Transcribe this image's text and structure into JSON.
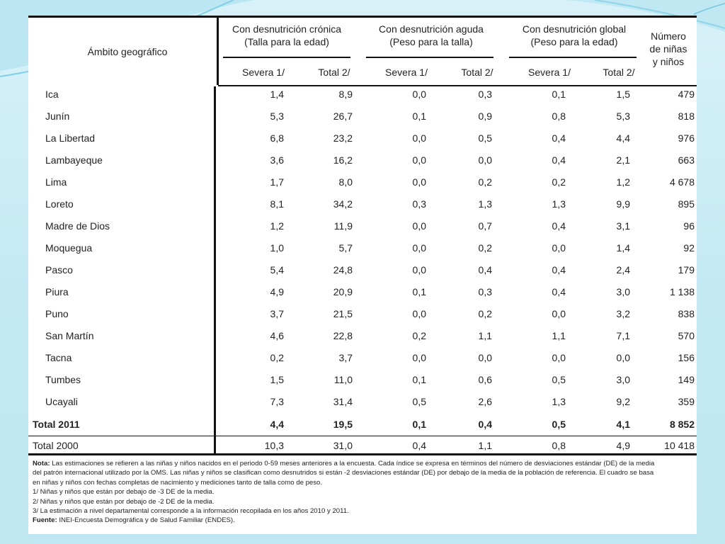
{
  "header": {
    "geo": "Ámbito geográfico",
    "chronic": [
      "Con desnutrición crónica",
      "(Talla para la edad)"
    ],
    "acute": [
      "Con desnutrición aguda",
      "(Peso para la talla)"
    ],
    "global": [
      "Con desnutrición global",
      "(Peso para la edad)"
    ],
    "count": [
      "Número",
      "de niñas",
      "y niños"
    ],
    "severe": "Severa 1/",
    "total": "Total 2/"
  },
  "rows": [
    {
      "name": "Ica",
      "v": [
        "1,4",
        "8,9",
        "0,0",
        "0,3",
        "0,1",
        "1,5",
        "479"
      ]
    },
    {
      "name": "Junín",
      "v": [
        "5,3",
        "26,7",
        "0,1",
        "0,9",
        "0,8",
        "5,3",
        "818"
      ]
    },
    {
      "name": "La Libertad",
      "v": [
        "6,8",
        "23,2",
        "0,0",
        "0,5",
        "0,4",
        "4,4",
        "976"
      ]
    },
    {
      "name": "Lambayeque",
      "v": [
        "3,6",
        "16,2",
        "0,0",
        "0,0",
        "0,4",
        "2,1",
        "663"
      ]
    },
    {
      "name": "Lima",
      "v": [
        "1,7",
        "8,0",
        "0,0",
        "0,2",
        "0,2",
        "1,2",
        "4 678"
      ]
    },
    {
      "name": "Loreto",
      "v": [
        "8,1",
        "34,2",
        "0,3",
        "1,3",
        "1,3",
        "9,9",
        "895"
      ]
    },
    {
      "name": "Madre de Dios",
      "v": [
        "1,2",
        "11,9",
        "0,0",
        "0,7",
        "0,4",
        "3,1",
        "96"
      ]
    },
    {
      "name": "Moquegua",
      "v": [
        "1,0",
        "5,7",
        "0,0",
        "0,2",
        "0,0",
        "1,4",
        "92"
      ]
    },
    {
      "name": "Pasco",
      "v": [
        "5,4",
        "24,8",
        "0,0",
        "0,4",
        "0,4",
        "2,4",
        "179"
      ]
    },
    {
      "name": "Piura",
      "v": [
        "4,9",
        "20,9",
        "0,1",
        "0,3",
        "0,4",
        "3,0",
        "1 138"
      ]
    },
    {
      "name": "Puno",
      "v": [
        "3,7",
        "21,5",
        "0,0",
        "0,2",
        "0,0",
        "3,2",
        "838"
      ]
    },
    {
      "name": "San Martín",
      "v": [
        "4,6",
        "22,8",
        "0,2",
        "1,1",
        "1,1",
        "7,1",
        "570"
      ]
    },
    {
      "name": "Tacna",
      "v": [
        "0,2",
        "3,7",
        "0,0",
        "0,0",
        "0,0",
        "0,0",
        "156"
      ]
    },
    {
      "name": "Tumbes",
      "v": [
        "1,5",
        "11,0",
        "0,1",
        "0,6",
        "0,5",
        "3,0",
        "149"
      ]
    },
    {
      "name": "Ucayali",
      "v": [
        "7,3",
        "31,4",
        "0,5",
        "2,6",
        "1,3",
        "9,2",
        "359"
      ]
    }
  ],
  "totals": [
    {
      "name": "Total 2011",
      "v": [
        "4,4",
        "19,5",
        "0,1",
        "0,4",
        "0,5",
        "4,1",
        "8 852"
      ]
    },
    {
      "name": "Total  2000",
      "v": [
        "10,3",
        "31,0",
        "0,4",
        "1,1",
        "0,8",
        "4,9",
        "10 418"
      ]
    }
  ],
  "notes": [
    {
      "label": "Nota:",
      "text": " Las estimaciones se refieren a las niñas y niños nacidos en el periodo 0-59 meses anteriores a la encuesta. Cada índice se expresa en términos del número de desviaciones estándar (DE) de la media"
    },
    {
      "label": "",
      "text": "del patrón internacional utilizado por la OMS. Las niñas y niños se clasifican como desnutridos si están  -2 desviaciones estándar (DE) por debajo de la media de la población de referencia. El cuadro se basa"
    },
    {
      "label": "",
      "text": "en niñas y niños con fechas completas de nacimiento y mediciones tanto de talla como de peso."
    },
    {
      "label": "",
      "text": "1/ Niñas y niños que están por debajo de -3 DE de la media."
    },
    {
      "label": "",
      "text": "2/ Niñas y niños que están por debajo de -2 DE de la media."
    },
    {
      "label": "",
      "text": "3/ La estimación a nivel departamental corresponde a la información recopilada en los años 2010 y 2011."
    },
    {
      "label": "Fuente:",
      "text": " INEI-Encuesta Demográfica y de Salud Familiar (ENDES)."
    }
  ]
}
